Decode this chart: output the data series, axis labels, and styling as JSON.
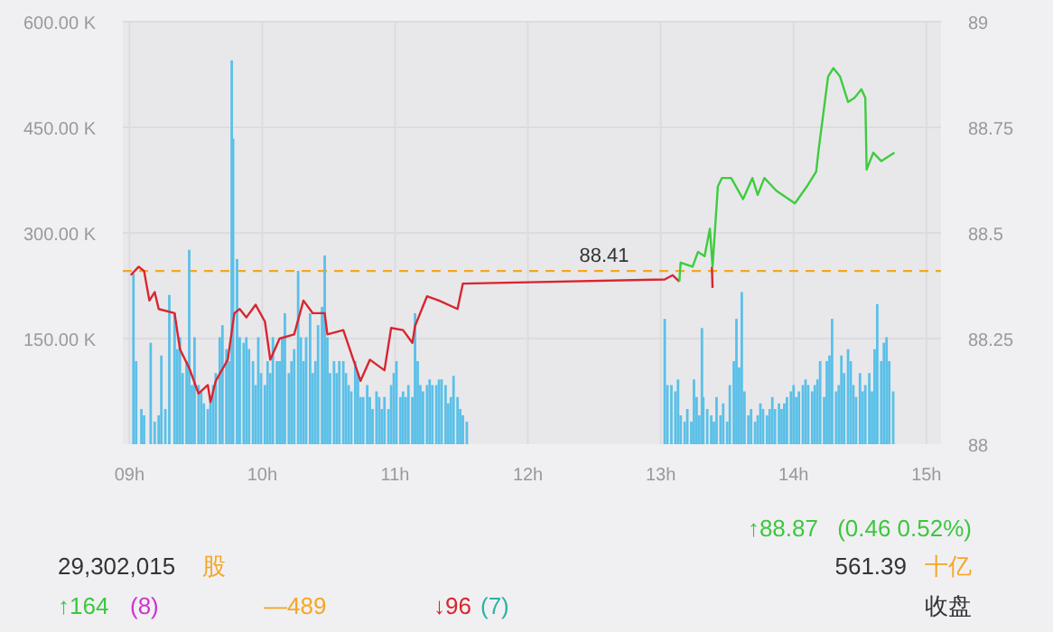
{
  "chart_data": {
    "type": "bar",
    "xlim": [
      8.95,
      15.11
    ],
    "xticks": [
      {
        "value": 9,
        "label": "09h"
      },
      {
        "value": 10,
        "label": "10h"
      },
      {
        "value": 11,
        "label": "11h"
      },
      {
        "value": 12,
        "label": "12h"
      },
      {
        "value": 13,
        "label": "13h"
      },
      {
        "value": 14,
        "label": "14h"
      },
      {
        "value": 15,
        "label": "15h"
      }
    ],
    "ylim": [
      0,
      600
    ],
    "yticks": [
      {
        "value": 150,
        "label": "150.00 K"
      },
      {
        "value": 300,
        "label": "300.00 K"
      },
      {
        "value": 450,
        "label": "450.00 K"
      },
      {
        "value": 600,
        "label": "600.00 K"
      }
    ],
    "y2lim": [
      88,
      89
    ],
    "y2ticks": [
      88,
      88.25,
      88.5,
      88.75,
      89
    ],
    "grid": true,
    "series": [
      {
        "axis": "y",
        "color": "#5bc0e8",
        "x": [
          9.03,
          9.05,
          9.09,
          9.11,
          9.16,
          9.19,
          9.22,
          9.24,
          9.27,
          9.3,
          9.34,
          9.36,
          9.38,
          9.4,
          9.43,
          9.45,
          9.47,
          9.49,
          9.52,
          9.54,
          9.56,
          9.59,
          9.61,
          9.63,
          9.65,
          9.68,
          9.7,
          9.73,
          9.75,
          9.77,
          9.78,
          9.81,
          9.83,
          9.86,
          9.88,
          9.9,
          9.93,
          9.95,
          9.97,
          9.99,
          10.02,
          10.04,
          10.06,
          10.08,
          10.11,
          10.13,
          10.15,
          10.17,
          10.2,
          10.22,
          10.24,
          10.27,
          10.29,
          10.31,
          10.33,
          10.36,
          10.38,
          10.4,
          10.42,
          10.45,
          10.47,
          10.49,
          10.51,
          10.54,
          10.56,
          10.58,
          10.61,
          10.63,
          10.65,
          10.67,
          10.7,
          10.72,
          10.74,
          10.76,
          10.79,
          10.81,
          10.83,
          10.86,
          10.88,
          10.9,
          10.92,
          10.95,
          10.97,
          10.99,
          11.01,
          11.04,
          11.06,
          11.08,
          11.1,
          11.13,
          11.15,
          11.17,
          11.19,
          11.21,
          11.24,
          11.26,
          11.28,
          11.31,
          11.33,
          11.35,
          11.38,
          11.4,
          11.42,
          11.44,
          11.47,
          11.49,
          11.51,
          11.54,
          13.03,
          13.05,
          13.08,
          13.11,
          13.13,
          13.15,
          13.18,
          13.2,
          13.23,
          13.25,
          13.27,
          13.29,
          13.31,
          13.32,
          13.35,
          13.38,
          13.4,
          13.42,
          13.45,
          13.47,
          13.5,
          13.52,
          13.55,
          13.57,
          13.59,
          13.61,
          13.63,
          13.66,
          13.68,
          13.71,
          13.73,
          13.75,
          13.77,
          13.8,
          13.82,
          13.84,
          13.86,
          13.89,
          13.91,
          13.93,
          13.95,
          13.98,
          14.0,
          14.02,
          14.04,
          14.07,
          14.09,
          14.11,
          14.14,
          14.16,
          14.18,
          14.2,
          14.23,
          14.25,
          14.27,
          14.29,
          14.32,
          14.34,
          14.36,
          14.38,
          14.41,
          14.43,
          14.45,
          14.47,
          14.5,
          14.52,
          14.54,
          14.57,
          14.59,
          14.61,
          14.63,
          14.66,
          14.68,
          14.7,
          14.72,
          14.75
        ],
        "values": [
          242,
          118,
          50,
          41,
          144,
          32,
          41,
          126,
          50,
          212,
          186,
          135,
          152,
          101,
          118,
          276,
          84,
          152,
          84,
          75,
          58,
          50,
          67,
          84,
          101,
          152,
          169,
          135,
          118,
          545,
          434,
          263,
          152,
          144,
          152,
          135,
          118,
          84,
          152,
          101,
          84,
          118,
          101,
          152,
          118,
          118,
          152,
          186,
          101,
          118,
          135,
          246,
          152,
          118,
          152,
          186,
          101,
          118,
          169,
          195,
          268,
          152,
          101,
          118,
          101,
          118,
          118,
          101,
          84,
          75,
          118,
          101,
          67,
          67,
          84,
          67,
          50,
          75,
          67,
          50,
          67,
          50,
          84,
          101,
          118,
          67,
          75,
          67,
          84,
          67,
          186,
          118,
          84,
          75,
          84,
          92,
          84,
          84,
          92,
          92,
          84,
          58,
          67,
          97,
          67,
          50,
          41,
          32,
          178,
          84,
          84,
          75,
          92,
          41,
          32,
          50,
          32,
          92,
          67,
          41,
          165,
          67,
          50,
          41,
          32,
          67,
          41,
          58,
          32,
          84,
          118,
          178,
          109,
          216,
          75,
          41,
          50,
          32,
          41,
          58,
          50,
          41,
          50,
          67,
          50,
          58,
          50,
          58,
          67,
          75,
          84,
          67,
          75,
          84,
          92,
          84,
          75,
          84,
          92,
          118,
          67,
          118,
          126,
          178,
          75,
          84,
          126,
          101,
          135,
          118,
          84,
          67,
          101,
          75,
          84,
          101,
          75,
          135,
          199,
          118,
          144,
          152,
          118,
          75
        ]
      },
      {
        "type": "line",
        "axis": "y2",
        "color": "#d9252f",
        "x": [
          9.01,
          9.07,
          9.11,
          9.15,
          9.19,
          9.22,
          9.34,
          9.38,
          9.45,
          9.52,
          9.59,
          9.61,
          9.65,
          9.74,
          9.79,
          9.83,
          9.88,
          9.95,
          10.02,
          10.06,
          10.13,
          10.24,
          10.31,
          10.38,
          10.47,
          10.49,
          10.61,
          10.74,
          10.81,
          10.92,
          10.97,
          11.06,
          11.13,
          11.15,
          11.24,
          11.33,
          11.47,
          11.51,
          13.03,
          13.09,
          13.14,
          13.2,
          13.385,
          13.39
        ],
        "values": [
          88.4,
          88.42,
          88.41,
          88.34,
          88.36,
          88.32,
          88.31,
          88.225,
          88.18,
          88.12,
          88.14,
          88.1,
          88.15,
          88.2,
          88.31,
          88.32,
          88.3,
          88.33,
          88.29,
          88.2,
          88.25,
          88.26,
          88.34,
          88.31,
          88.31,
          88.26,
          88.27,
          88.15,
          88.2,
          88.175,
          88.275,
          88.27,
          88.24,
          88.28,
          88.35,
          88.34,
          88.32,
          88.38,
          88.39,
          88.4,
          88.385,
          null,
          88.42,
          88.37
        ]
      },
      {
        "type": "line",
        "axis": "y2",
        "color": "#3ecc3e",
        "x": [
          13.14,
          13.15,
          13.24,
          13.28,
          13.33,
          13.37,
          13.39,
          13.43,
          13.46,
          13.53,
          13.62,
          13.69,
          13.73,
          13.78,
          13.87,
          14.01,
          14.1,
          14.17,
          14.19,
          14.26,
          14.3,
          14.35,
          14.41,
          14.46,
          14.51,
          14.54,
          14.55,
          14.6,
          14.66,
          14.71,
          14.76
        ],
        "values": [
          88.385,
          88.43,
          88.42,
          88.455,
          88.445,
          88.51,
          88.42,
          88.61,
          88.63,
          88.63,
          88.58,
          88.63,
          88.59,
          88.63,
          88.6,
          88.57,
          88.61,
          88.645,
          88.7,
          88.87,
          88.89,
          88.87,
          88.81,
          88.82,
          88.84,
          88.82,
          88.65,
          88.69,
          88.67,
          88.68,
          88.69
        ]
      }
    ],
    "ref_lines": [
      {
        "axis": "y2",
        "value": 88.41,
        "label": "88.41",
        "color": "#f5a623",
        "line_style": "dashed"
      }
    ],
    "annotations": [
      "↑88.87",
      "(0.46 0.52%)",
      "29,302,015",
      "股",
      "561.39",
      "十亿",
      "↑164",
      "(8)",
      "—489",
      "↓96",
      "(7)",
      "收盘"
    ]
  }
}
